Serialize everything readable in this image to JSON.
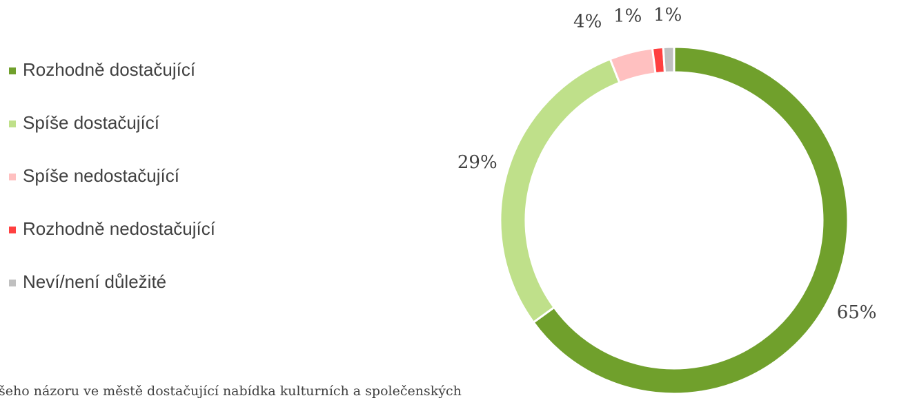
{
  "chart_data": {
    "type": "donut",
    "title": "šeho názoru ve městě dostačující nabídka kulturních a společenských",
    "categories": [
      "Rozhodně dostačující",
      "Spíše dostačující",
      "Spíše nedostačující",
      "Rozhodně nedostačující",
      "Neví/není důležité"
    ],
    "values": [
      65,
      29,
      4,
      1,
      1
    ],
    "value_labels": [
      "65%",
      "29%",
      "4%",
      "1%",
      "1%"
    ],
    "colors": [
      "#70a02c",
      "#bfe08a",
      "#ffc0c0",
      "#ff4040",
      "#c0c0c0"
    ],
    "legend": "left"
  }
}
